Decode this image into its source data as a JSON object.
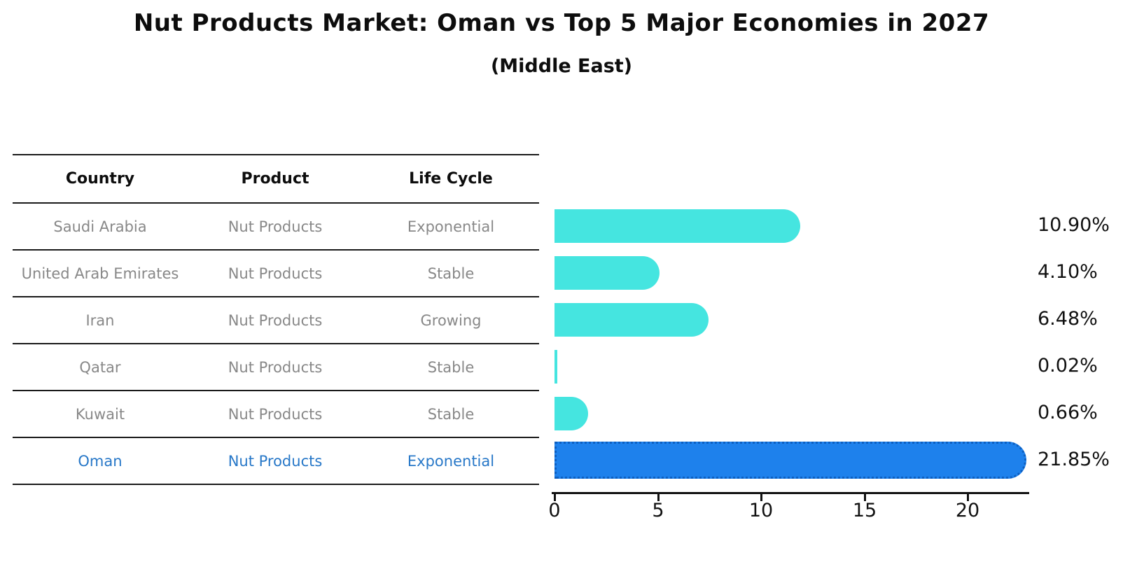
{
  "header": {
    "title": "Nut Products Market: Oman vs Top 5 Major Economies in 2027",
    "subtitle": "(Middle East)"
  },
  "table": {
    "headers": [
      "Country",
      "Product",
      "Life Cycle"
    ],
    "rows": [
      {
        "country": "Saudi Arabia",
        "product": "Nut Products",
        "life_cycle": "Exponential",
        "highlight": false
      },
      {
        "country": "United Arab Emirates",
        "product": "Nut Products",
        "life_cycle": "Stable",
        "highlight": false
      },
      {
        "country": "Iran",
        "product": "Nut Products",
        "life_cycle": "Growing",
        "highlight": false
      },
      {
        "country": "Qatar",
        "product": "Nut Products",
        "life_cycle": "Stable",
        "highlight": false
      },
      {
        "country": "Kuwait",
        "product": "Nut Products",
        "life_cycle": "Stable",
        "highlight": false
      },
      {
        "country": "Oman",
        "product": "Nut Products",
        "life_cycle": "Exponential",
        "highlight": true
      }
    ]
  },
  "chart_data": {
    "type": "bar",
    "orientation": "horizontal",
    "title": "Nut Products Market: Oman vs Top 5 Major Economies in 2027",
    "subtitle": "(Middle East)",
    "categories": [
      "Saudi Arabia",
      "United Arab Emirates",
      "Iran",
      "Qatar",
      "Kuwait",
      "Oman"
    ],
    "values": [
      10.9,
      4.1,
      6.48,
      0.02,
      0.66,
      21.85
    ],
    "value_labels": [
      "10.90%",
      "4.10%",
      "6.48%",
      "0.02%",
      "0.66%",
      "21.85%"
    ],
    "xlabel": "",
    "ylabel": "",
    "xlim": [
      0,
      23
    ],
    "xticks": [
      0,
      5,
      10,
      15,
      20
    ],
    "grid": false,
    "legend": false,
    "bar_color": "#45E5E0",
    "highlight_color": "#1E81EC",
    "highlight_text_color": "#2878C8",
    "highlight_index": 5
  }
}
